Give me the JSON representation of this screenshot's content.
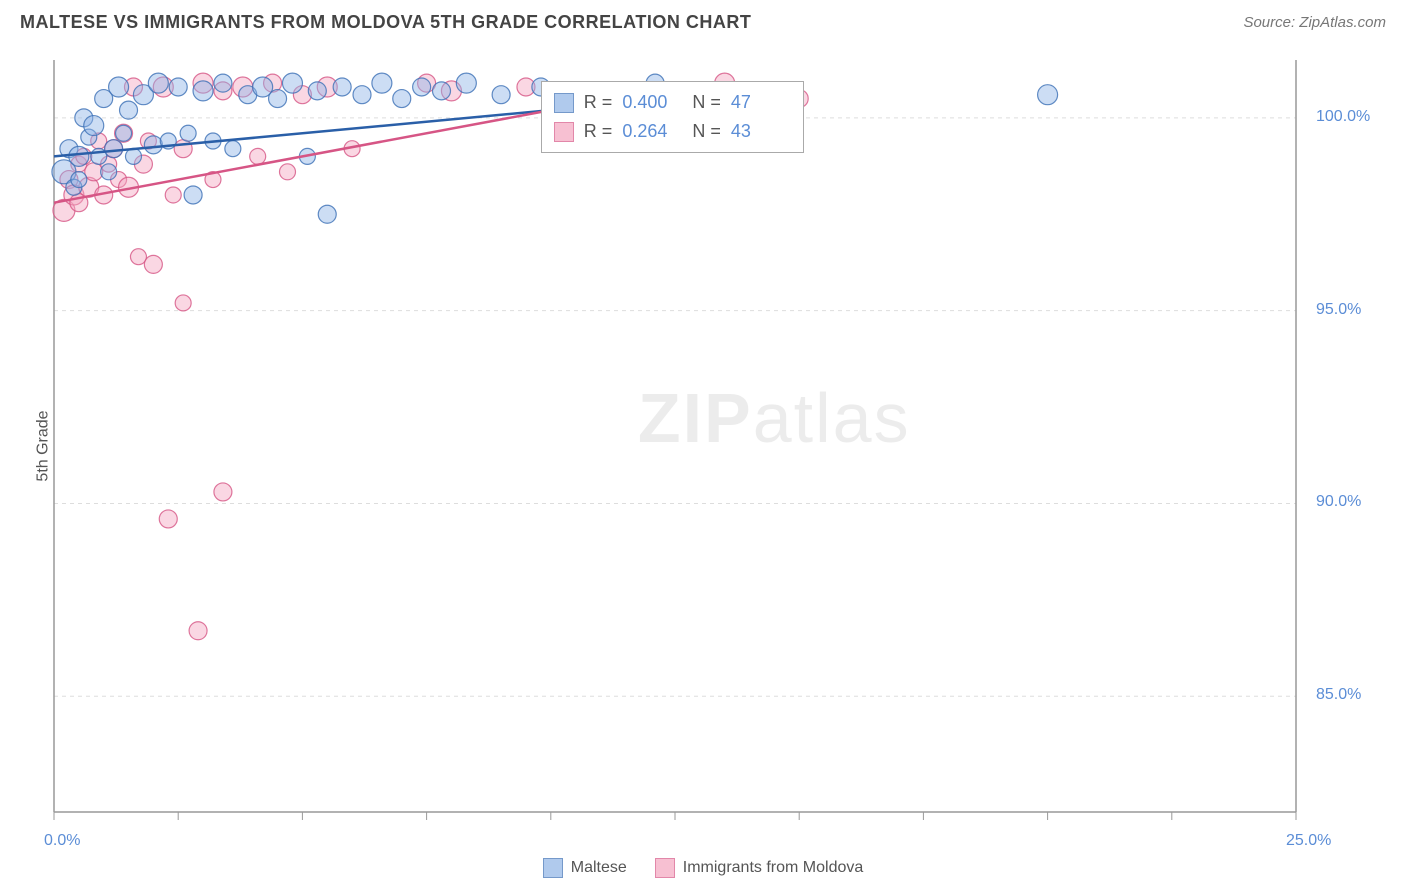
{
  "title": "MALTESE VS IMMIGRANTS FROM MOLDOVA 5TH GRADE CORRELATION CHART",
  "source": "Source: ZipAtlas.com",
  "ylabel": "5th Grade",
  "watermark_zip": "ZIP",
  "watermark_atlas": "atlas",
  "chart": {
    "type": "scatter",
    "xlim": [
      0,
      25
    ],
    "ylim": [
      82,
      101.5
    ],
    "x_ticks": [
      0,
      2.5,
      5,
      7.5,
      10,
      12.5,
      15,
      17.5,
      20,
      22.5,
      25
    ],
    "x_tick_labels": {
      "0": "0.0%",
      "25": "25.0%"
    },
    "y_ticks": [
      85,
      90,
      95,
      100
    ],
    "y_tick_labels": {
      "85": "85.0%",
      "90": "90.0%",
      "95": "95.0%",
      "100": "100.0%"
    },
    "grid_color": "#dddddd",
    "axis_color": "#999999",
    "background_color": "#ffffff",
    "series": [
      {
        "name": "Maltese",
        "fill": "#8fb4e6",
        "fill_opacity": 0.45,
        "stroke": "#3b6fb5",
        "line_color": "#2a5fa8",
        "line": {
          "x1": 0,
          "y1": 99.0,
          "x2": 10,
          "y2": 100.2
        },
        "R": "0.400",
        "N": "47",
        "points": [
          [
            0.2,
            98.6,
            12
          ],
          [
            0.3,
            99.2,
            9
          ],
          [
            0.4,
            98.2,
            8
          ],
          [
            0.5,
            99.0,
            10
          ],
          [
            0.5,
            98.4,
            8
          ],
          [
            0.6,
            100.0,
            9
          ],
          [
            0.7,
            99.5,
            8
          ],
          [
            0.8,
            99.8,
            10
          ],
          [
            0.9,
            99.0,
            8
          ],
          [
            1.0,
            100.5,
            9
          ],
          [
            1.1,
            98.6,
            8
          ],
          [
            1.2,
            99.2,
            9
          ],
          [
            1.3,
            100.8,
            10
          ],
          [
            1.4,
            99.6,
            8
          ],
          [
            1.5,
            100.2,
            9
          ],
          [
            1.6,
            99.0,
            8
          ],
          [
            1.8,
            100.6,
            10
          ],
          [
            2.0,
            99.3,
            9
          ],
          [
            2.1,
            100.9,
            10
          ],
          [
            2.3,
            99.4,
            8
          ],
          [
            2.5,
            100.8,
            9
          ],
          [
            2.7,
            99.6,
            8
          ],
          [
            2.8,
            98.0,
            9
          ],
          [
            3.0,
            100.7,
            10
          ],
          [
            3.2,
            99.4,
            8
          ],
          [
            3.4,
            100.9,
            9
          ],
          [
            3.6,
            99.2,
            8
          ],
          [
            3.9,
            100.6,
            9
          ],
          [
            4.2,
            100.8,
            10
          ],
          [
            4.5,
            100.5,
            9
          ],
          [
            4.8,
            100.9,
            10
          ],
          [
            5.1,
            99.0,
            8
          ],
          [
            5.3,
            100.7,
            9
          ],
          [
            5.5,
            97.5,
            9
          ],
          [
            5.8,
            100.8,
            9
          ],
          [
            6.2,
            100.6,
            9
          ],
          [
            6.6,
            100.9,
            10
          ],
          [
            7.0,
            100.5,
            9
          ],
          [
            7.4,
            100.8,
            9
          ],
          [
            7.8,
            100.7,
            9
          ],
          [
            8.3,
            100.9,
            10
          ],
          [
            9.0,
            100.6,
            9
          ],
          [
            9.8,
            100.8,
            9
          ],
          [
            11.5,
            100.5,
            10
          ],
          [
            12.1,
            100.9,
            9
          ],
          [
            12.3,
            99.5,
            9
          ],
          [
            20.0,
            100.6,
            10
          ]
        ]
      },
      {
        "name": "Immigrants from Moldova",
        "fill": "#f4a6c0",
        "fill_opacity": 0.45,
        "stroke": "#d65585",
        "line_color": "#d65585",
        "line": {
          "x1": 0,
          "y1": 97.8,
          "x2": 10,
          "y2": 100.2
        },
        "R": "0.264",
        "N": "43",
        "points": [
          [
            0.2,
            97.6,
            11
          ],
          [
            0.3,
            98.4,
            9
          ],
          [
            0.4,
            98.0,
            10
          ],
          [
            0.5,
            98.8,
            8
          ],
          [
            0.5,
            97.8,
            9
          ],
          [
            0.6,
            99.0,
            8
          ],
          [
            0.7,
            98.2,
            10
          ],
          [
            0.8,
            98.6,
            9
          ],
          [
            0.9,
            99.4,
            8
          ],
          [
            1.0,
            98.0,
            9
          ],
          [
            1.1,
            98.8,
            8
          ],
          [
            1.2,
            99.2,
            9
          ],
          [
            1.3,
            98.4,
            8
          ],
          [
            1.4,
            99.6,
            9
          ],
          [
            1.5,
            98.2,
            10
          ],
          [
            1.6,
            100.8,
            9
          ],
          [
            1.7,
            96.4,
            8
          ],
          [
            1.8,
            98.8,
            9
          ],
          [
            1.9,
            99.4,
            8
          ],
          [
            2.0,
            96.2,
            9
          ],
          [
            2.2,
            100.8,
            10
          ],
          [
            2.4,
            98.0,
            8
          ],
          [
            2.6,
            99.2,
            9
          ],
          [
            2.6,
            95.2,
            8
          ],
          [
            2.3,
            89.6,
            9
          ],
          [
            2.9,
            86.7,
            9
          ],
          [
            3.0,
            100.9,
            10
          ],
          [
            3.2,
            98.4,
            8
          ],
          [
            3.4,
            100.7,
            9
          ],
          [
            3.4,
            90.3,
            9
          ],
          [
            3.8,
            100.8,
            10
          ],
          [
            4.1,
            99.0,
            8
          ],
          [
            4.4,
            100.9,
            9
          ],
          [
            4.7,
            98.6,
            8
          ],
          [
            5.0,
            100.6,
            9
          ],
          [
            5.5,
            100.8,
            10
          ],
          [
            6.0,
            99.2,
            8
          ],
          [
            7.5,
            100.9,
            9
          ],
          [
            8.0,
            100.7,
            10
          ],
          [
            9.5,
            100.8,
            9
          ],
          [
            10.5,
            100.6,
            9
          ],
          [
            13.5,
            100.9,
            10
          ],
          [
            15.0,
            100.5,
            9
          ]
        ]
      }
    ]
  },
  "legend": {
    "series1": "Maltese",
    "series2": "Immigrants from Moldova"
  },
  "stats_labels": {
    "R": "R =",
    "N": "N ="
  }
}
